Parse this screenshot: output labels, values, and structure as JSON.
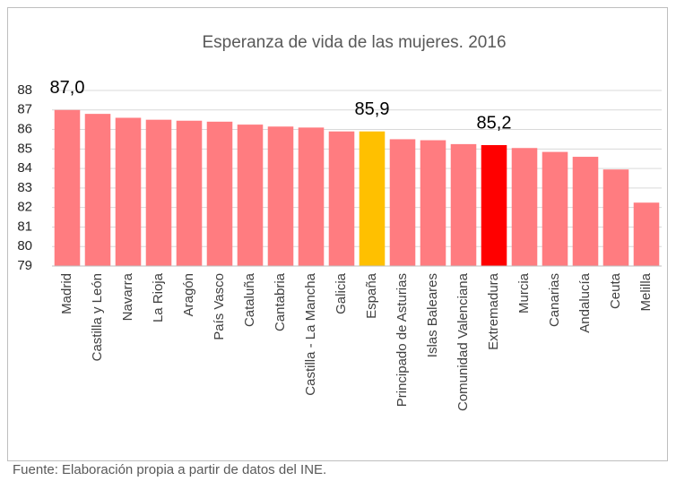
{
  "chart_data": {
    "type": "bar",
    "title": "Esperanza de vida de las mujeres. 2016",
    "source": "Fuente: Elaboración propia a partir de datos del INE.",
    "categories": [
      "Madrid",
      "Castilla y León",
      "Navarra",
      "La Rioja",
      "Aragón",
      "País Vasco",
      "Cataluña",
      "Cantabria",
      "Castilla - La Mancha",
      "Galicia",
      "España",
      "Principado de Asturias",
      "Islas Baleares",
      "Comunidad Valenciana",
      "Extremadura",
      "Murcia",
      "Canarias",
      "Andalucía",
      "Ceuta",
      "Melilla"
    ],
    "values": [
      87.0,
      86.8,
      86.6,
      86.5,
      86.45,
      86.4,
      86.25,
      86.15,
      86.1,
      85.9,
      85.9,
      85.5,
      85.45,
      85.25,
      85.2,
      85.05,
      84.85,
      84.6,
      83.95,
      82.25
    ],
    "value_labels": [
      "87,0",
      null,
      null,
      null,
      null,
      null,
      null,
      null,
      null,
      null,
      "85,9",
      null,
      null,
      null,
      "85,2",
      null,
      null,
      null,
      null,
      null
    ],
    "colors": [
      "#ff7c80",
      "#ff7c80",
      "#ff7c80",
      "#ff7c80",
      "#ff7c80",
      "#ff7c80",
      "#ff7c80",
      "#ff7c80",
      "#ff7c80",
      "#ff7c80",
      "#ffc000",
      "#ff7c80",
      "#ff7c80",
      "#ff7c80",
      "#ff0000",
      "#ff7c80",
      "#ff7c80",
      "#ff7c80",
      "#ff7c80",
      "#ff7c80"
    ],
    "ylim": [
      79,
      88
    ],
    "yticks": [
      79,
      80,
      81,
      82,
      83,
      84,
      85,
      86,
      87,
      88
    ],
    "grid": true
  }
}
